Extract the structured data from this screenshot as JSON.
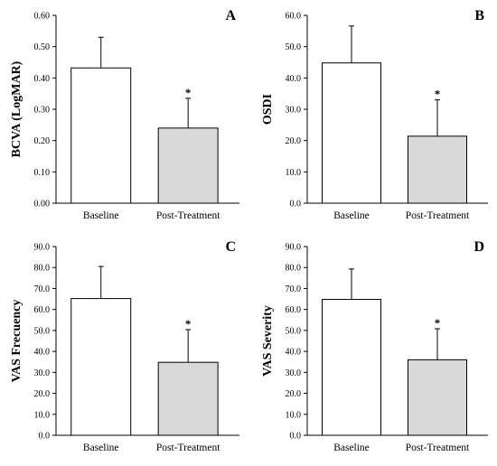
{
  "colors": {
    "baseline_fill": "#ffffff",
    "post_fill": "#d9d9d9",
    "stroke": "#000000"
  },
  "chart_data": [
    {
      "type": "bar",
      "panel": "A",
      "ylabel": "BCVA (LogMAR)",
      "categories": [
        "Baseline",
        "Post-Treatment"
      ],
      "values": [
        0.432,
        0.24
      ],
      "errors": [
        0.098,
        0.095
      ],
      "significance": [
        "",
        "*"
      ],
      "ylim": [
        0,
        0.6
      ],
      "yticks": [
        "0.00",
        "0.10",
        "0.20",
        "0.30",
        "0.40",
        "0.50",
        "0.60"
      ],
      "grid": false
    },
    {
      "type": "bar",
      "panel": "B",
      "ylabel": "OSDI",
      "categories": [
        "Baseline",
        "Post-Treatment"
      ],
      "values": [
        44.8,
        21.4
      ],
      "errors": [
        11.8,
        11.6
      ],
      "significance": [
        "",
        "*"
      ],
      "ylim": [
        0,
        60
      ],
      "yticks": [
        "0.0",
        "10.0",
        "20.0",
        "30.0",
        "40.0",
        "50.0",
        "60.0"
      ],
      "grid": false
    },
    {
      "type": "bar",
      "panel": "C",
      "ylabel": "VAS Frecuency",
      "categories": [
        "Baseline",
        "Post-Treatment"
      ],
      "values": [
        65.2,
        34.8
      ],
      "errors": [
        15.3,
        15.6
      ],
      "significance": [
        "",
        "*"
      ],
      "ylim": [
        0,
        90
      ],
      "yticks": [
        "0.0",
        "10.0",
        "20.0",
        "30.0",
        "40.0",
        "50.0",
        "60.0",
        "70.0",
        "80.0",
        "90.0"
      ],
      "grid": false
    },
    {
      "type": "bar",
      "panel": "D",
      "ylabel": "VAS Severity",
      "categories": [
        "Baseline",
        "Post-Treatment"
      ],
      "values": [
        64.8,
        36.0
      ],
      "errors": [
        14.5,
        14.8
      ],
      "significance": [
        "",
        "*"
      ],
      "ylim": [
        0,
        90
      ],
      "yticks": [
        "0.0",
        "10.0",
        "20.0",
        "30.0",
        "40.0",
        "50.0",
        "60.0",
        "70.0",
        "80.0",
        "90.0"
      ],
      "grid": false
    }
  ]
}
